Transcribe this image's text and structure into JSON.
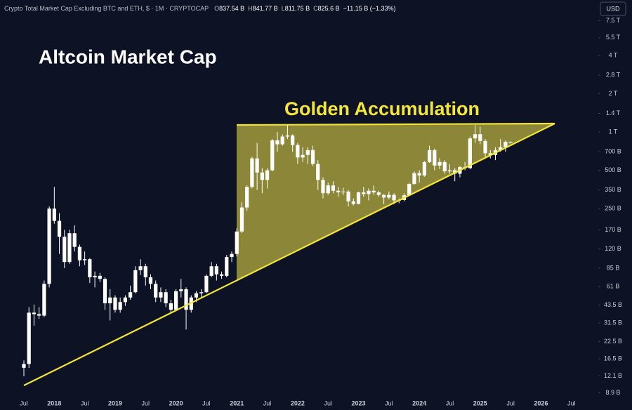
{
  "header": {
    "symbol": "Crypto Total Market Cap Excluding BTC and ETH, $ · 1M · CRYPTOCAP",
    "ohlc": [
      {
        "key": "O",
        "value": "837.54 B"
      },
      {
        "key": "H",
        "value": "841.77 B"
      },
      {
        "key": "L",
        "value": "811.75 B"
      },
      {
        "key": "C",
        "value": "825.6 B"
      }
    ],
    "change": "−11.15 B (−1.33%)",
    "currency_button": "USD"
  },
  "chart_data": {
    "type": "candlestick",
    "title": "Altcoin Market Cap",
    "annotation": "Golden Accumulation",
    "color": "#ffffff",
    "log_scale": true,
    "grid": false,
    "categories": [
      "Jul",
      null,
      null,
      null,
      null,
      null,
      "2018",
      null,
      null,
      null,
      null,
      null,
      "Jul",
      null,
      null,
      null,
      null,
      null,
      "2019",
      null,
      null,
      null,
      null,
      null,
      "Jul",
      null,
      null,
      null,
      null,
      null,
      "2020",
      null,
      null,
      null,
      null,
      null,
      "Jul",
      null,
      null,
      null,
      null,
      null,
      "2021",
      null,
      null,
      null,
      null,
      null,
      "Jul",
      null,
      null,
      null,
      null,
      null,
      "2022",
      null,
      null,
      null,
      null,
      null,
      "Jul",
      null,
      null,
      null,
      null,
      null,
      "2023",
      null,
      null,
      null,
      null,
      null,
      "Jul",
      null,
      null,
      null,
      null,
      null,
      "2024",
      null,
      null,
      null,
      null,
      null,
      "Jul",
      null,
      null,
      null,
      null,
      null,
      "2025",
      null,
      null,
      null,
      null,
      null,
      "Jul",
      null,
      null,
      null,
      null,
      null,
      "2026",
      null,
      null,
      null,
      null,
      null,
      "Jul"
    ],
    "open": [
      14,
      15,
      38,
      37,
      36,
      64,
      250,
      200,
      150,
      95,
      160,
      125,
      98,
      100,
      72,
      74,
      70,
      45,
      50,
      40,
      46,
      50,
      55,
      82,
      88,
      72,
      64,
      50,
      55,
      45,
      40,
      56,
      58,
      40,
      50,
      54,
      55,
      74,
      88,
      76,
      74,
      104,
      110,
      165,
      255,
      370,
      620,
      480,
      420,
      500,
      860,
      800,
      920,
      940,
      790,
      630,
      660,
      720,
      560,
      420,
      330,
      380,
      345,
      335,
      340,
      285,
      272,
      335,
      325,
      345,
      335,
      320,
      305,
      320,
      290,
      292,
      318,
      390,
      475,
      455,
      580,
      720,
      545,
      580,
      490,
      500,
      470,
      530,
      520,
      890,
      960,
      850,
      680,
      660,
      720,
      760,
      837.54,
      null,
      null,
      null,
      null,
      null,
      null,
      null,
      null,
      null,
      null,
      null,
      null
    ],
    "high": [
      16,
      42,
      44,
      42,
      68,
      260,
      370,
      230,
      170,
      170,
      185,
      130,
      115,
      102,
      80,
      78,
      72,
      58,
      52,
      50,
      52,
      62,
      88,
      100,
      92,
      76,
      68,
      60,
      58,
      48,
      58,
      70,
      60,
      52,
      56,
      58,
      76,
      95,
      92,
      80,
      108,
      115,
      175,
      280,
      380,
      640,
      820,
      520,
      520,
      880,
      1000,
      960,
      1140,
      960,
      820,
      760,
      760,
      780,
      600,
      440,
      400,
      410,
      370,
      365,
      350,
      300,
      340,
      370,
      360,
      380,
      345,
      325,
      340,
      330,
      300,
      330,
      400,
      490,
      500,
      590,
      780,
      740,
      620,
      600,
      560,
      520,
      540,
      580,
      920,
      1130,
      1100,
      880,
      720,
      760,
      880,
      860,
      841.77,
      null,
      null,
      null,
      null,
      null,
      null,
      null,
      null,
      null,
      null,
      null,
      null
    ],
    "low": [
      12,
      14,
      30,
      34,
      35,
      60,
      190,
      110,
      85,
      92,
      115,
      88,
      90,
      65,
      60,
      66,
      40,
      33,
      38,
      38,
      43,
      48,
      54,
      75,
      62,
      58,
      46,
      46,
      42,
      38,
      39,
      50,
      28,
      38,
      46,
      50,
      54,
      72,
      68,
      70,
      72,
      95,
      105,
      160,
      240,
      360,
      350,
      330,
      360,
      490,
      700,
      780,
      880,
      700,
      560,
      580,
      560,
      540,
      350,
      300,
      320,
      330,
      310,
      320,
      260,
      265,
      270,
      310,
      290,
      320,
      310,
      270,
      295,
      270,
      275,
      285,
      315,
      385,
      400,
      445,
      570,
      500,
      510,
      470,
      470,
      410,
      440,
      500,
      510,
      820,
      800,
      640,
      620,
      600,
      700,
      700,
      811.75,
      null,
      null,
      null,
      null,
      null,
      null,
      null,
      null,
      null,
      null,
      null,
      null
    ],
    "close": [
      15,
      38,
      37,
      36,
      64,
      250,
      200,
      150,
      95,
      160,
      125,
      98,
      100,
      72,
      74,
      70,
      45,
      50,
      40,
      46,
      50,
      55,
      82,
      88,
      72,
      64,
      50,
      55,
      45,
      40,
      56,
      58,
      40,
      50,
      54,
      55,
      74,
      88,
      76,
      74,
      104,
      110,
      165,
      255,
      370,
      620,
      480,
      420,
      500,
      860,
      800,
      920,
      940,
      790,
      630,
      660,
      720,
      560,
      420,
      330,
      380,
      345,
      335,
      340,
      285,
      272,
      335,
      325,
      345,
      335,
      320,
      305,
      320,
      290,
      292,
      318,
      390,
      475,
      455,
      580,
      720,
      545,
      580,
      490,
      500,
      470,
      530,
      520,
      890,
      960,
      850,
      680,
      660,
      720,
      760,
      837.54,
      825.6,
      null,
      null,
      null,
      null,
      null,
      null,
      null,
      null,
      null,
      null,
      null,
      null
    ],
    "ylim": [
      8.2,
      10900
    ],
    "yticks": [
      {
        "value": 7500,
        "label": "7.5 T"
      },
      {
        "value": 5500,
        "label": "5.5 T"
      },
      {
        "value": 4000,
        "label": "4 T"
      },
      {
        "value": 2800,
        "label": "2.8 T"
      },
      {
        "value": 2000,
        "label": "2 T"
      },
      {
        "value": 1400,
        "label": "1.4 T"
      },
      {
        "value": 1000,
        "label": "1 T"
      },
      {
        "value": 700,
        "label": "700 B"
      },
      {
        "value": 500,
        "label": "500 B"
      },
      {
        "value": 350,
        "label": "350 B"
      },
      {
        "value": 250,
        "label": "250 B"
      },
      {
        "value": 170,
        "label": "170 B"
      },
      {
        "value": 120,
        "label": "120 B"
      },
      {
        "value": 85,
        "label": "85 B"
      },
      {
        "value": 61,
        "label": "61 B"
      },
      {
        "value": 43.5,
        "label": "43.5 B"
      },
      {
        "value": 31.5,
        "label": "31.5 B"
      },
      {
        "value": 22.5,
        "label": "22.5 B"
      },
      {
        "value": 16.5,
        "label": "16.5 B"
      },
      {
        "value": 12.1,
        "label": "12.1 B"
      },
      {
        "value": 8.9,
        "label": "8.9 B"
      }
    ]
  }
}
